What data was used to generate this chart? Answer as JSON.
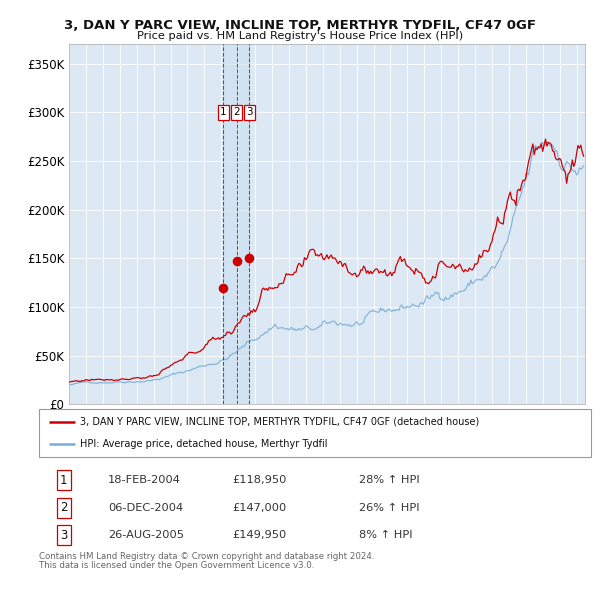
{
  "title": "3, DAN Y PARC VIEW, INCLINE TOP, MERTHYR TYDFIL, CF47 0GF",
  "subtitle": "Price paid vs. HM Land Registry's House Price Index (HPI)",
  "background_color": "#ffffff",
  "plot_bg_color": "#dce9f5",
  "grid_color": "#ffffff",
  "red_line_color": "#cc0000",
  "blue_line_color": "#7aadd4",
  "ylim": [
    0,
    370000
  ],
  "yticks": [
    0,
    50000,
    100000,
    150000,
    200000,
    250000,
    300000,
    350000
  ],
  "ytick_labels": [
    "£0",
    "£50K",
    "£100K",
    "£150K",
    "£200K",
    "£250K",
    "£300K",
    "£350K"
  ],
  "x_start_year": 1995,
  "x_end_year": 2025,
  "trans_dates_num": [
    2004.12,
    2004.92,
    2005.65
  ],
  "trans_prices": [
    118950,
    147000,
    149950
  ],
  "trans_labels": [
    "1",
    "2",
    "3"
  ],
  "transactions": [
    {
      "num": "1",
      "date": "18-FEB-2004",
      "price": "£118,950",
      "pct": "28% ↑ HPI"
    },
    {
      "num": "2",
      "date": "06-DEC-2004",
      "price": "£147,000",
      "pct": "26% ↑ HPI"
    },
    {
      "num": "3",
      "date": "26-AUG-2005",
      "price": "£149,950",
      "pct": "8% ↑ HPI"
    }
  ],
  "legend_line1": "3, DAN Y PARC VIEW, INCLINE TOP, MERTHYR TYDFIL, CF47 0GF (detached house)",
  "legend_line2": "HPI: Average price, detached house, Merthyr Tydfil",
  "footnote1": "Contains HM Land Registry data © Crown copyright and database right 2024.",
  "footnote2": "This data is licensed under the Open Government Licence v3.0.",
  "box_border_color": "#cc0000"
}
